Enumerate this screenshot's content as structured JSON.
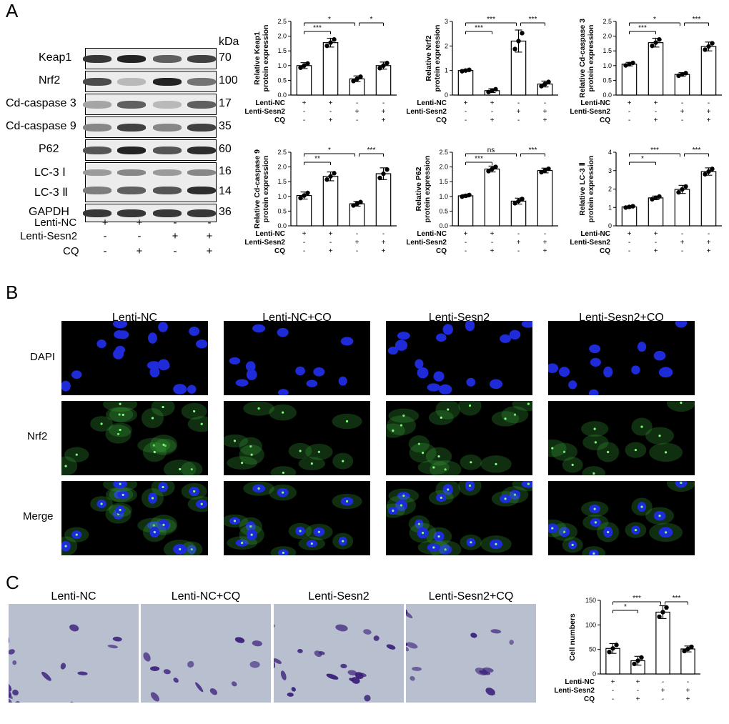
{
  "panels": {
    "a": "A",
    "b": "B",
    "c": "C"
  },
  "western_blot": {
    "kda_header": "kDa",
    "rows": [
      {
        "label": "Keap1",
        "kda": "70",
        "bands": [
          0.9,
          1.0,
          0.7,
          0.85
        ]
      },
      {
        "label": "Nrf2",
        "kda": "100",
        "bands": [
          0.8,
          0.25,
          1.0,
          0.6
        ]
      },
      {
        "label": "Cd-caspase 3",
        "kda": "17",
        "bands": [
          0.35,
          0.7,
          0.25,
          0.7
        ]
      },
      {
        "label": "Cd-caspase 9",
        "kda": "35",
        "bands": [
          0.5,
          0.85,
          0.5,
          0.85
        ]
      },
      {
        "label": "P62",
        "kda": "60",
        "bands": [
          0.75,
          1.0,
          0.75,
          0.95
        ]
      },
      {
        "label": "LC-3 Ⅰ",
        "kda": "16",
        "bands": [
          0.4,
          0.5,
          0.4,
          0.5
        ]
      },
      {
        "label": "LC-3 Ⅱ",
        "kda": "14",
        "bands": [
          0.55,
          0.7,
          0.75,
          0.95
        ]
      },
      {
        "label": "GAPDH",
        "kda": "36",
        "bands": [
          0.9,
          0.9,
          0.9,
          0.9
        ]
      }
    ],
    "conditions": [
      {
        "label": "Lenti-NC",
        "signs": [
          "+",
          "+",
          "-",
          "-"
        ]
      },
      {
        "label": "Lenti-Sesn2",
        "signs": [
          "-",
          "-",
          "+",
          "+"
        ]
      },
      {
        "label": "CQ",
        "signs": [
          "-",
          "+",
          "-",
          "+"
        ]
      }
    ]
  },
  "chart_data": [
    {
      "type": "bar",
      "ylabel": "Relative Keap1 protein expression",
      "values": [
        1.0,
        1.78,
        0.55,
        1.0
      ],
      "errors": [
        0.1,
        0.15,
        0.1,
        0.12
      ],
      "ylim": [
        0,
        2.5
      ],
      "yticks": [
        "0.0",
        "0.5",
        "1.0",
        "1.5",
        "2.0",
        "2.5"
      ],
      "sig": [
        {
          "from": 0,
          "to": 1,
          "label": "***",
          "level": 0
        },
        {
          "from": 0,
          "to": 2,
          "label": "*",
          "level": 1
        },
        {
          "from": 2,
          "to": 3,
          "label": "*",
          "level": 1
        }
      ]
    },
    {
      "type": "bar",
      "ylabel": "Relative Nrf2 protein expression",
      "values": [
        1.0,
        0.18,
        2.2,
        0.45
      ],
      "errors": [
        0.04,
        0.08,
        0.45,
        0.12
      ],
      "ylim": [
        0,
        3
      ],
      "yticks": [
        "0",
        "1",
        "2",
        "3"
      ],
      "sig": [
        {
          "from": 0,
          "to": 1,
          "label": "***",
          "level": 0
        },
        {
          "from": 0,
          "to": 2,
          "label": "***",
          "level": 1
        },
        {
          "from": 2,
          "to": 3,
          "label": "***",
          "level": 1
        }
      ]
    },
    {
      "type": "bar",
      "ylabel": "Relative Cd-caspase 3 protein expression",
      "values": [
        1.05,
        1.78,
        0.7,
        1.65
      ],
      "errors": [
        0.06,
        0.15,
        0.06,
        0.15
      ],
      "ylim": [
        0,
        2.5
      ],
      "yticks": [
        "0.0",
        "0.5",
        "1.0",
        "1.5",
        "2.0",
        "2.5"
      ],
      "sig": [
        {
          "from": 0,
          "to": 1,
          "label": "***",
          "level": 0
        },
        {
          "from": 0,
          "to": 2,
          "label": "*",
          "level": 1
        },
        {
          "from": 2,
          "to": 3,
          "label": "***",
          "level": 1
        }
      ]
    },
    {
      "type": "bar",
      "ylabel": "Relative Cd-caspase 9 protein expression",
      "values": [
        1.03,
        1.68,
        0.75,
        1.77
      ],
      "errors": [
        0.12,
        0.15,
        0.08,
        0.2
      ],
      "ylim": [
        0,
        2.5
      ],
      "yticks": [
        "0.0",
        "0.5",
        "1.0",
        "1.5",
        "2.0",
        "2.5"
      ],
      "sig": [
        {
          "from": 0,
          "to": 1,
          "label": "**",
          "level": 0
        },
        {
          "from": 0,
          "to": 2,
          "label": "*",
          "level": 1
        },
        {
          "from": 2,
          "to": 3,
          "label": "***",
          "level": 1
        }
      ]
    },
    {
      "type": "bar",
      "ylabel": "Relative P62 protein expression",
      "values": [
        1.02,
        1.93,
        0.84,
        1.88
      ],
      "errors": [
        0.04,
        0.1,
        0.1,
        0.08
      ],
      "ylim": [
        0,
        2.5
      ],
      "yticks": [
        "0.0",
        "0.5",
        "1.0",
        "1.5",
        "2.0",
        "2.5"
      ],
      "sig": [
        {
          "from": 0,
          "to": 1,
          "label": "***",
          "level": 0
        },
        {
          "from": 0,
          "to": 2,
          "label": "ns",
          "level": 1
        },
        {
          "from": 2,
          "to": 3,
          "label": "***",
          "level": 1
        }
      ]
    },
    {
      "type": "bar",
      "ylabel": "Relative LC-3 Ⅱ protein expression",
      "values": [
        1.03,
        1.52,
        1.98,
        2.95
      ],
      "errors": [
        0.05,
        0.1,
        0.22,
        0.2
      ],
      "ylim": [
        0,
        4
      ],
      "yticks": [
        "0",
        "1",
        "2",
        "3",
        "4"
      ],
      "sig": [
        {
          "from": 0,
          "to": 1,
          "label": "*",
          "level": 0
        },
        {
          "from": 0,
          "to": 2,
          "label": "***",
          "level": 1
        },
        {
          "from": 2,
          "to": 3,
          "label": "***",
          "level": 1
        }
      ]
    },
    {
      "type": "bar",
      "ylabel": "Cell numbers",
      "values": [
        52,
        27,
        126,
        51
      ],
      "errors": [
        10,
        9,
        13,
        6
      ],
      "ylim": [
        0,
        150
      ],
      "yticks": [
        "0",
        "50",
        "100",
        "150"
      ],
      "sig": [
        {
          "from": 0,
          "to": 1,
          "label": "*",
          "level": 0
        },
        {
          "from": 0,
          "to": 2,
          "label": "***",
          "level": 1
        },
        {
          "from": 2,
          "to": 3,
          "label": "***",
          "level": 1
        }
      ]
    }
  ],
  "bar_conditions": [
    {
      "label": "Lenti-NC",
      "signs": [
        "+",
        "+",
        "-",
        "-"
      ]
    },
    {
      "label": "Lenti-Sesn2",
      "signs": [
        "-",
        "-",
        "+",
        "+"
      ]
    },
    {
      "label": "CQ",
      "signs": [
        "-",
        "+",
        "-",
        "+"
      ]
    }
  ],
  "microscopy": {
    "columns": [
      "Lenti-NC",
      "Lenti-NC+CQ",
      "Lenti-Sesn2",
      "Lenti-Sesn2+CQ"
    ],
    "rows": [
      "DAPI",
      "Nrf2",
      "Merge"
    ]
  },
  "transwell": {
    "columns": [
      "Lenti-NC",
      "Lenti-NC+CQ",
      "Lenti-Sesn2",
      "Lenti-Sesn2+CQ"
    ],
    "density": [
      0.65,
      0.35,
      0.95,
      0.7
    ]
  },
  "colors": {
    "dapi": "#1f2bd8",
    "nrf2": "#3aa63a",
    "crystal_violet": "#3a1f7a",
    "background_well": "#b8bfcf"
  }
}
